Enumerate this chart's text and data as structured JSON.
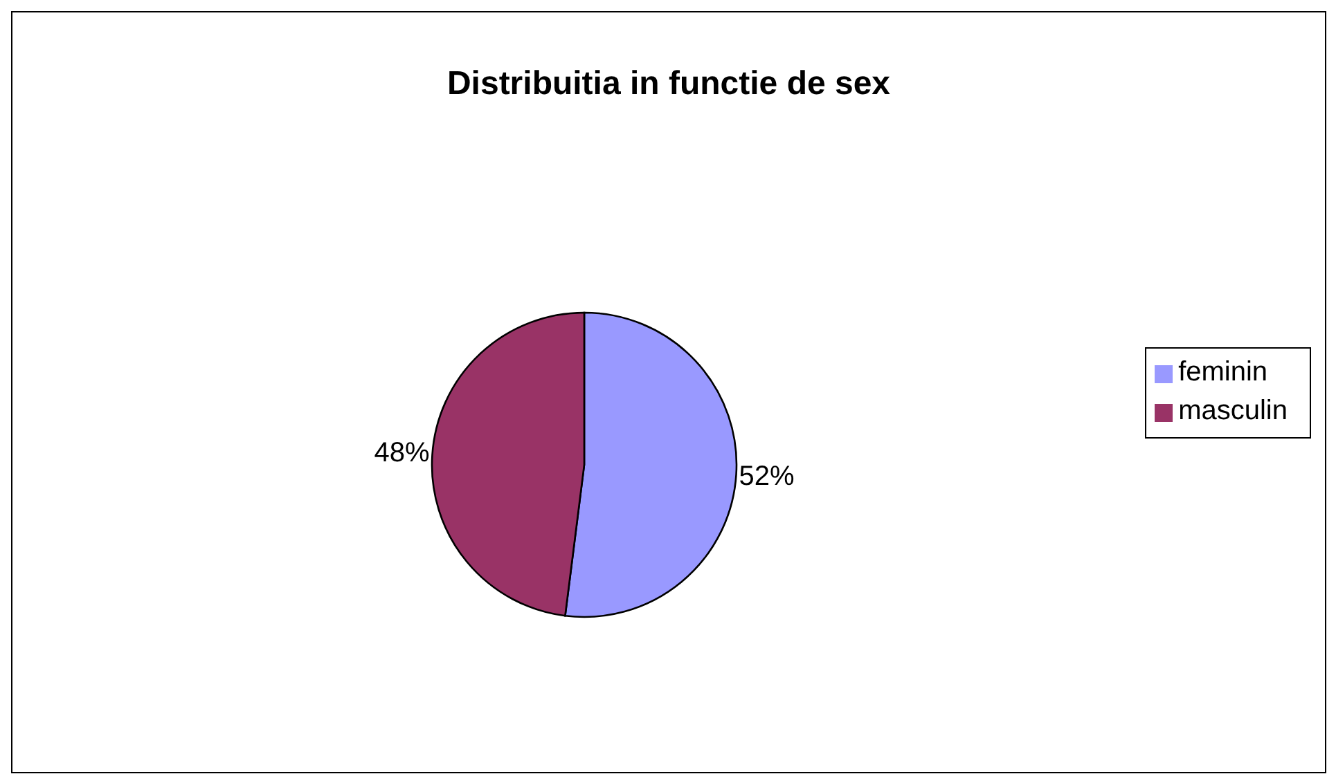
{
  "chart_data": {
    "type": "pie",
    "title": "Distribuitia in functie de sex",
    "categories": [
      "feminin",
      "masculin"
    ],
    "values": [
      52,
      48
    ],
    "colors": [
      "#9999ff",
      "#993366"
    ],
    "value_labels": [
      "52%",
      "48%"
    ],
    "legend": "right"
  }
}
